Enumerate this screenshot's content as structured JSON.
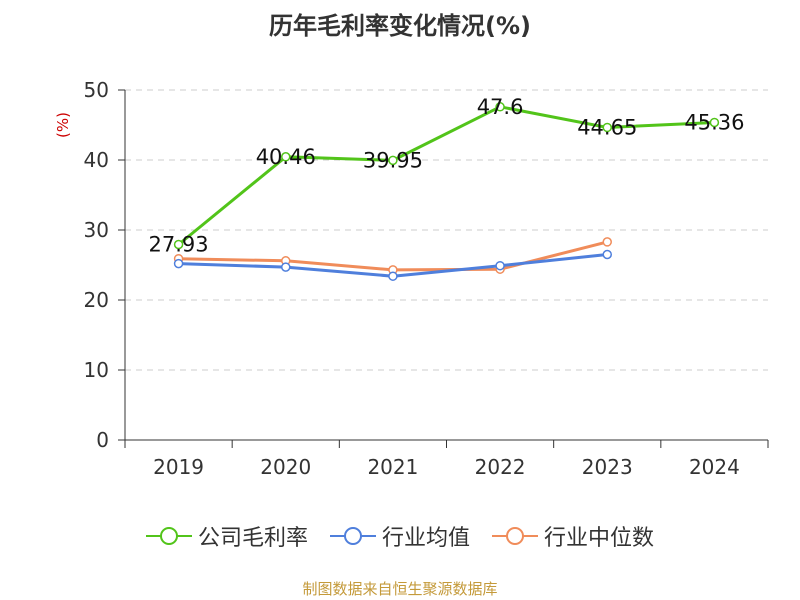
{
  "title": "历年毛利率变化情况(%)",
  "source": "制图数据来自恒生聚源数据库",
  "chart_data": {
    "type": "line",
    "title": "历年毛利率变化情况(%)",
    "ylabel": "(%)",
    "xlabel": "",
    "categories": [
      "2019",
      "2020",
      "2021",
      "2022",
      "2023",
      "2024"
    ],
    "ylim": [
      0,
      50
    ],
    "yticks": [
      0,
      10,
      20,
      30,
      40,
      50
    ],
    "grid": true,
    "legend_position": "bottom",
    "series": [
      {
        "name": "公司毛利率",
        "color": "#52c41a",
        "values": [
          27.93,
          40.46,
          39.95,
          47.6,
          44.65,
          45.36
        ],
        "labels": [
          "27.93",
          "40.46",
          "39.95",
          "47.6",
          "44.65",
          "45.36"
        ]
      },
      {
        "name": "行业均值",
        "color": "#4f7fdc",
        "values": [
          25.2,
          24.7,
          23.4,
          24.9,
          26.5,
          null
        ]
      },
      {
        "name": "行业中位数",
        "color": "#f08c5a",
        "values": [
          25.9,
          25.6,
          24.3,
          24.4,
          28.3,
          null
        ]
      }
    ]
  }
}
